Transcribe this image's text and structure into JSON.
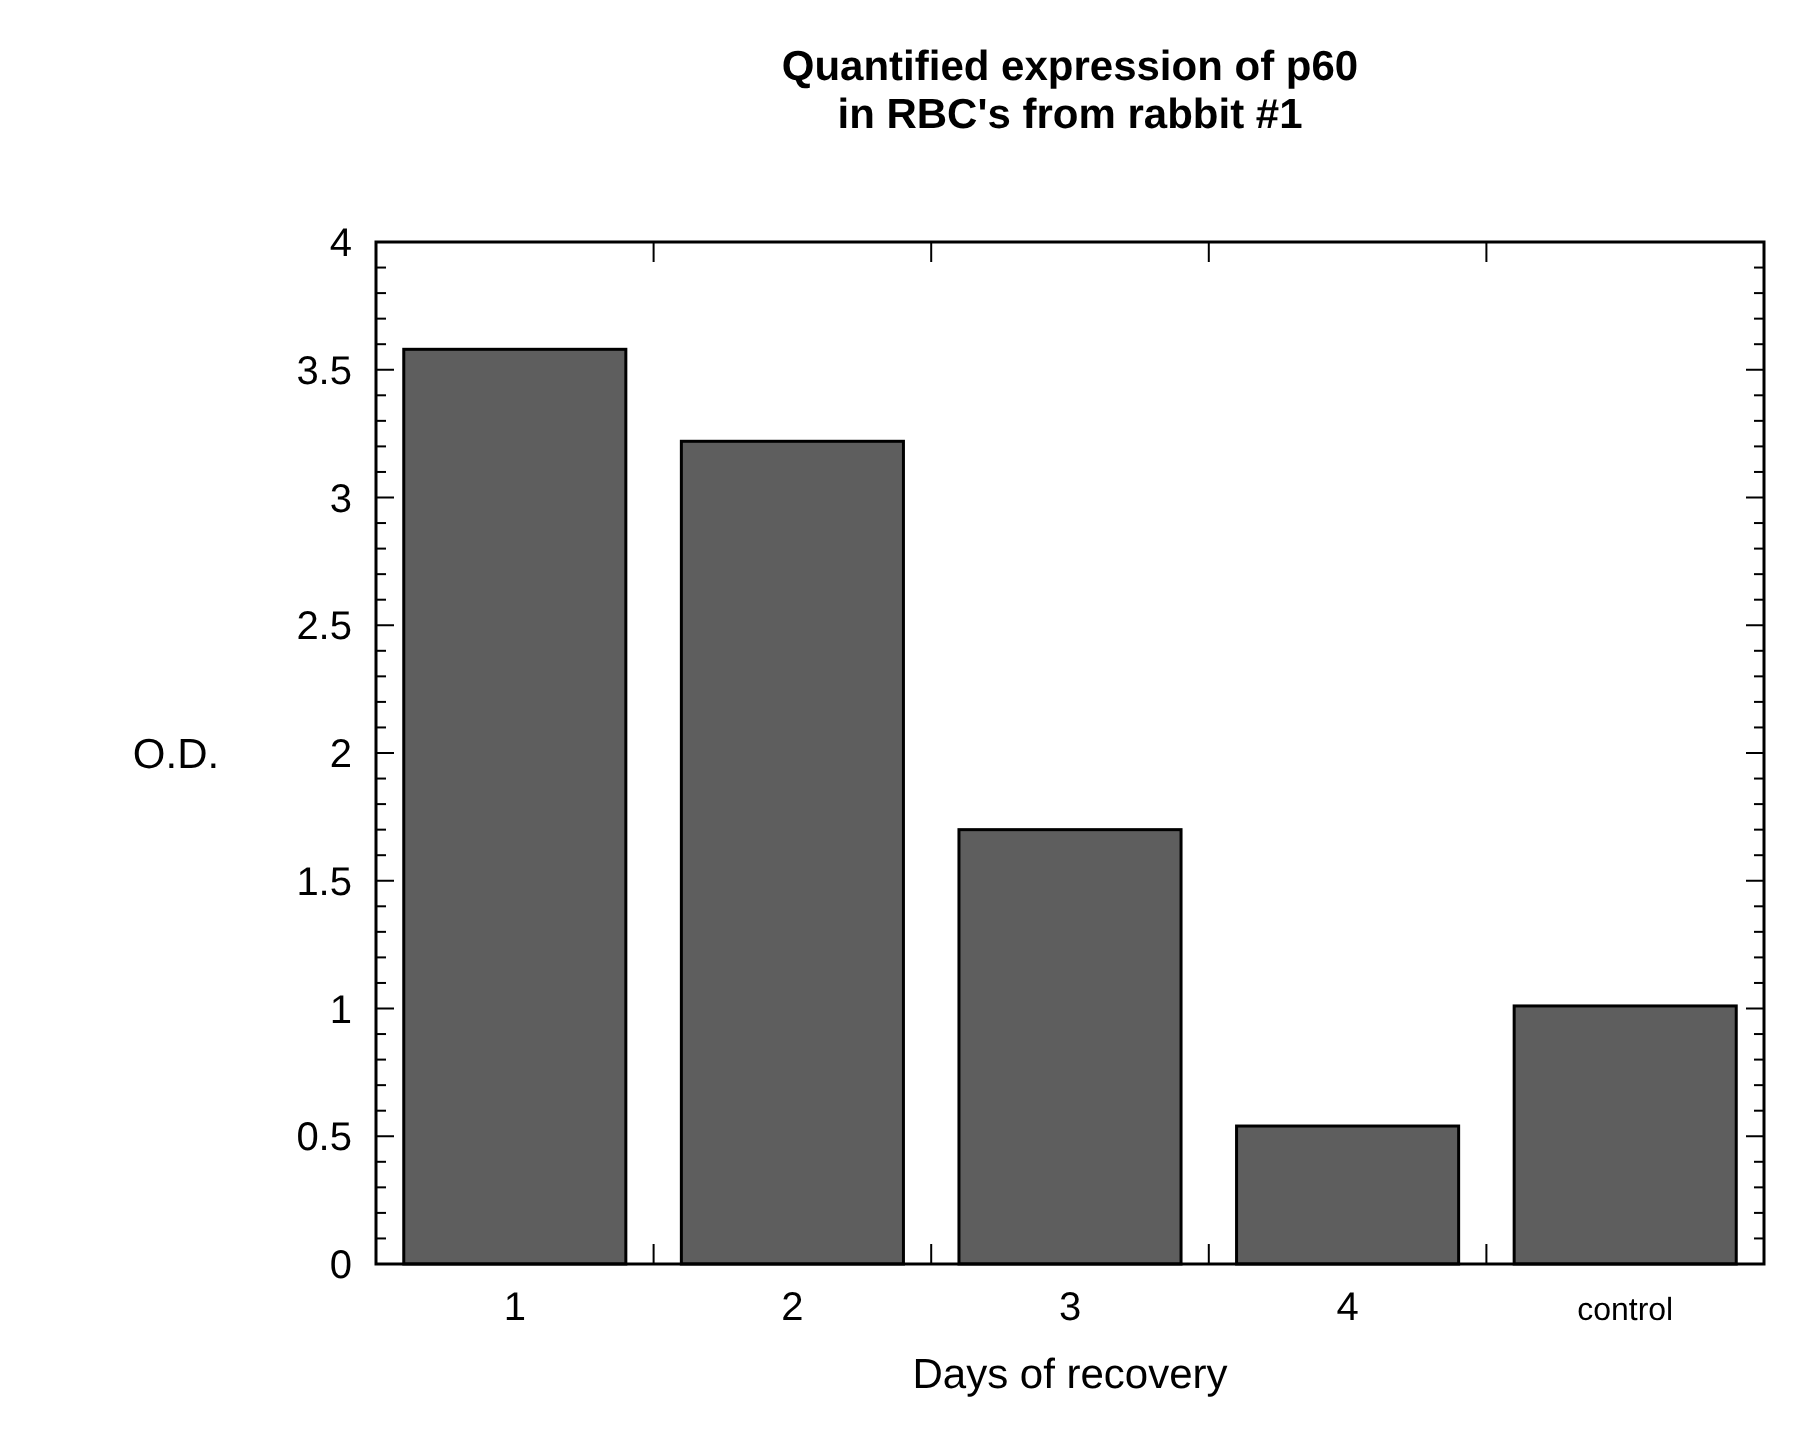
{
  "chart_data": {
    "type": "bar",
    "title": "Quantified expression of p60\nin RBC's from rabbit #1",
    "xlabel": "Days of recovery",
    "ylabel": "O.D.",
    "categories": [
      "1",
      "2",
      "3",
      "4",
      "control"
    ],
    "values": [
      3.58,
      3.22,
      1.7,
      0.54,
      1.01
    ],
    "color": "#5e5e5e",
    "ylim": [
      0,
      4
    ],
    "yticks": [
      0,
      {
        "value": 0.1,
        "label": null
      },
      {
        "value": 0.2,
        "label": null
      },
      {
        "value": 0.3,
        "label": null
      },
      {
        "value": 0.4,
        "label": null
      },
      0.5,
      {
        "value": 0.6,
        "label": null
      },
      {
        "value": 0.7,
        "label": null
      },
      {
        "value": 0.8,
        "label": null
      },
      {
        "value": 0.9,
        "label": null
      },
      1,
      {
        "value": 1.1,
        "label": null
      },
      {
        "value": 1.2,
        "label": null
      },
      {
        "value": 1.3,
        "label": null
      },
      {
        "value": 1.4,
        "label": null
      },
      1.5,
      {
        "value": 1.6,
        "label": null
      },
      {
        "value": 1.7,
        "label": null
      },
      {
        "value": 1.8,
        "label": null
      },
      {
        "value": 1.9,
        "label": null
      },
      2,
      {
        "value": 2.1,
        "label": null
      },
      {
        "value": 2.2,
        "label": null
      },
      {
        "value": 2.3,
        "label": null
      },
      {
        "value": 2.4,
        "label": null
      },
      2.5,
      {
        "value": 2.6,
        "label": null
      },
      {
        "value": 2.7,
        "label": null
      },
      {
        "value": 2.8,
        "label": null
      },
      {
        "value": 2.9,
        "label": null
      },
      3,
      {
        "value": 3.1,
        "label": null
      },
      {
        "value": 3.2,
        "label": null
      },
      {
        "value": 3.3,
        "label": null
      },
      {
        "value": 3.4,
        "label": null
      },
      3.5,
      {
        "value": 3.6,
        "label": null
      },
      {
        "value": 3.7,
        "label": null
      },
      {
        "value": 3.8,
        "label": null
      },
      {
        "value": 3.9,
        "label": null
      },
      4
    ],
    "grid": false
  }
}
